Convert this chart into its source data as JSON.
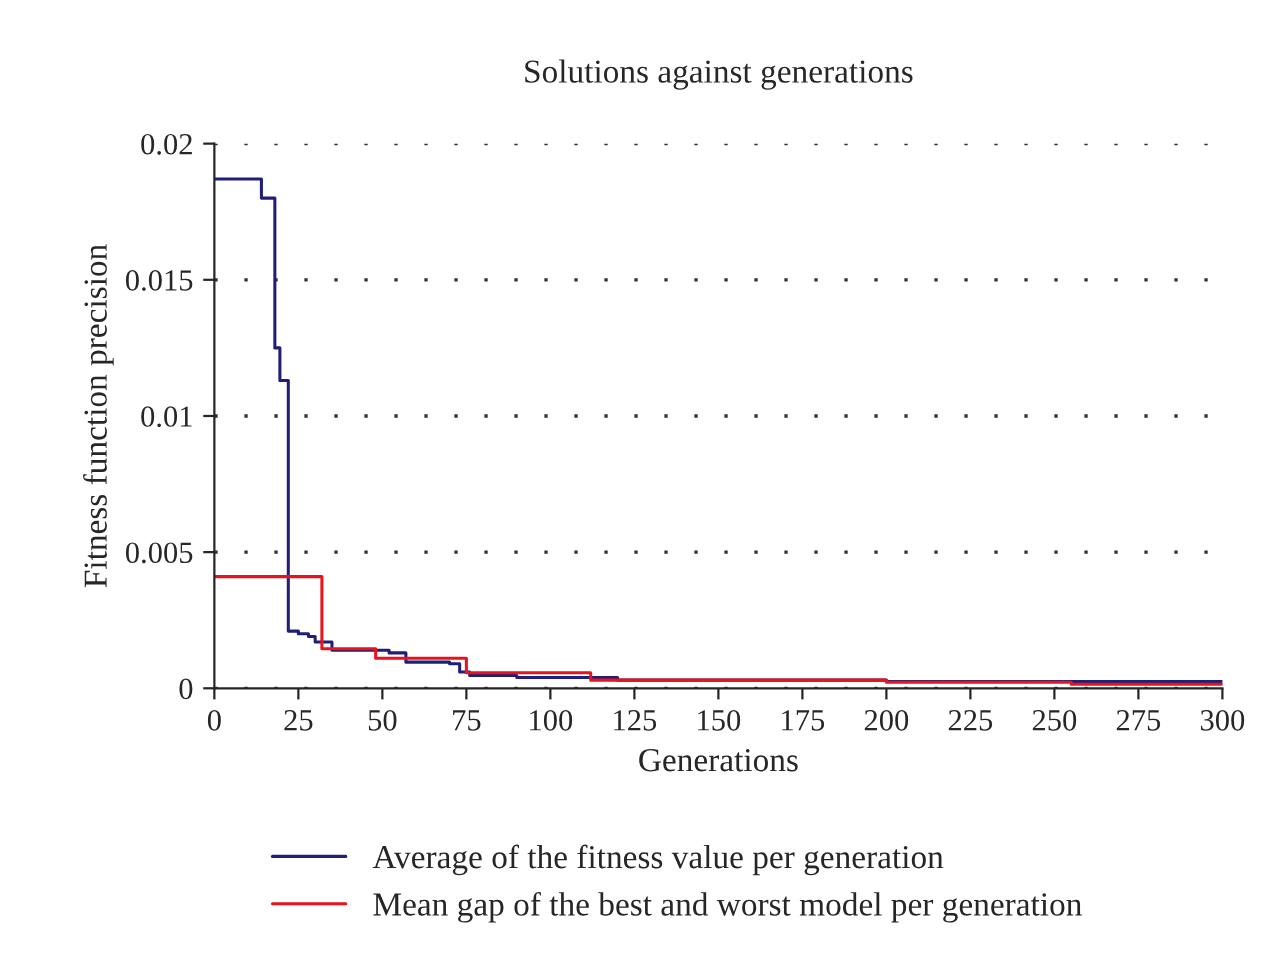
{
  "chart_data": {
    "type": "step",
    "title": "Solutions against generations",
    "xlabel": "Generations",
    "ylabel": "Fitness function precision",
    "xlim": [
      0,
      300
    ],
    "xticks": [
      0,
      25,
      50,
      75,
      100,
      125,
      150,
      175,
      200,
      225,
      250,
      275,
      300
    ],
    "ylim": [
      0,
      0.02
    ],
    "yticks": [
      0,
      0.005,
      0.01,
      0.015,
      0.02
    ],
    "grid": "y",
    "legend": "bottom",
    "line_style": "solid",
    "series": [
      {
        "name": "Average of the fitness value per generation",
        "color": "#1f1f7a",
        "x": [
          0,
          12,
          14,
          17,
          18,
          19.5,
          21,
          22,
          25,
          28,
          30,
          35,
          52,
          57,
          70,
          73,
          76,
          90,
          120,
          200,
          300
        ],
        "values": [
          0.0187,
          0.0187,
          0.018,
          0.018,
          0.0125,
          0.0113,
          0.0113,
          0.0021,
          0.002,
          0.0019,
          0.0017,
          0.0014,
          0.0013,
          0.00096,
          0.0009,
          0.0006,
          0.00047,
          0.0004,
          0.0003,
          0.00025,
          0.0002
        ]
      },
      {
        "name": "Mean gap of the best and worst model per generation",
        "color": "#e8141c",
        "x": [
          0,
          32,
          48,
          75,
          112,
          200,
          255,
          300
        ],
        "values": [
          0.0041,
          0.00145,
          0.0011,
          0.00057,
          0.0003,
          0.00022,
          0.00015,
          0.00015
        ]
      }
    ]
  }
}
